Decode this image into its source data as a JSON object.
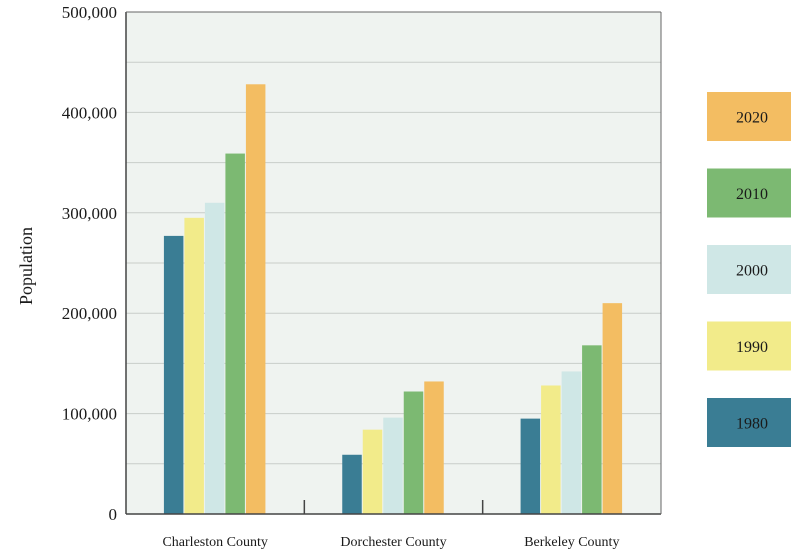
{
  "chart_data": {
    "type": "bar",
    "title": "",
    "xlabel": "",
    "ylabel": "Population",
    "ylim": [
      0,
      500000
    ],
    "yticks": [
      "0",
      "100,000",
      "200,000",
      "300,000",
      "400,000",
      "500,000"
    ],
    "categories": [
      "Charleston County",
      "Dorchester County",
      "Berkeley County"
    ],
    "series": [
      {
        "name": "1980",
        "color": "#3a7d94",
        "values": [
          277000,
          59000,
          95000
        ]
      },
      {
        "name": "1990",
        "color": "#f2eb8a",
        "values": [
          295000,
          84000,
          128000
        ]
      },
      {
        "name": "2000",
        "color": "#cfe7e6",
        "values": [
          310000,
          96000,
          142000
        ]
      },
      {
        "name": "2010",
        "color": "#7cb972",
        "values": [
          359000,
          122000,
          168000
        ]
      },
      {
        "name": "2020",
        "color": "#f3bd62",
        "values": [
          428000,
          132000,
          210000
        ]
      }
    ],
    "legend_order": [
      "2020",
      "2010",
      "2000",
      "1990",
      "1980"
    ],
    "legend_position": "right",
    "grid": true,
    "plot_background": "#eff3f0"
  }
}
